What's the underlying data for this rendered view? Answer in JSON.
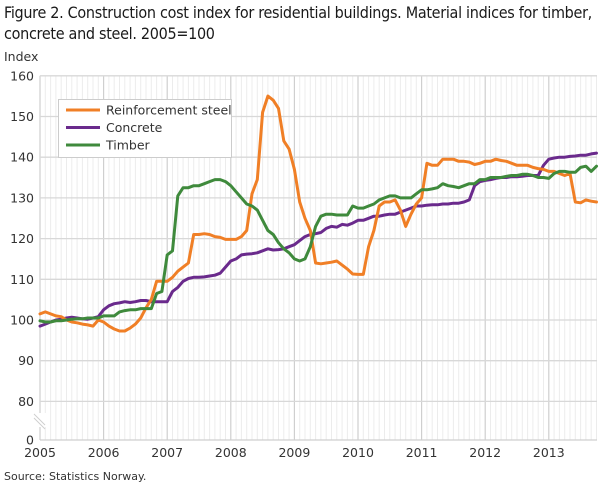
{
  "chart_data": {
    "type": "line",
    "title": "Figure 2. Construction cost index for residential buildings. Material indices for timber, concrete and steel. 2005=100",
    "ylabel": "Index",
    "xlabel": "",
    "source": "Source: Statistics Norway.",
    "yticks": [
      "0",
      "80",
      "90",
      "100",
      "110",
      "120",
      "130",
      "140",
      "150",
      "160"
    ],
    "ylim": [
      80,
      160
    ],
    "y_axis_break": true,
    "xticks": [
      "2005",
      "2006",
      "2007",
      "2008",
      "2009",
      "2010",
      "2011",
      "2012",
      "2013"
    ],
    "x_start": "2005-01",
    "x_end": "2013-10",
    "frequency": "monthly",
    "grid": true,
    "legend_position": "top-left",
    "series": [
      {
        "name": "Reinforcement steel",
        "color": "#f07f26",
        "values": [
          101.5,
          102,
          101.5,
          101,
          100.8,
          100,
          99.5,
          99.3,
          99,
          98.8,
          98.5,
          100,
          99.5,
          98.5,
          97.8,
          97.3,
          97.3,
          98,
          99,
          100.5,
          103,
          105,
          109.5,
          109.5,
          109.5,
          110.5,
          112,
          113,
          114,
          121,
          121,
          121.2,
          121,
          120.5,
          120.3,
          119.8,
          119.8,
          119.8,
          120.5,
          122,
          131,
          134.5,
          151,
          155,
          154,
          152,
          144,
          142,
          137,
          129,
          125,
          122,
          114,
          113.8,
          114,
          114.2,
          114.5,
          113.5,
          112.5,
          111.3,
          111.2,
          111.2,
          118,
          122,
          128,
          129,
          129,
          129.5,
          127,
          123,
          126,
          128.5,
          130,
          138.5,
          138,
          138,
          139.5,
          139.5,
          139.5,
          139,
          139,
          138.8,
          138.2,
          138.5,
          139,
          139,
          139.5,
          139.2,
          139,
          138.5,
          138,
          138,
          138,
          137.5,
          137.2,
          137,
          136.5,
          136.5,
          136,
          135.5,
          136,
          129,
          128.8,
          129.5,
          129.2,
          129
        ]
      },
      {
        "name": "Concrete",
        "color": "#6a2a8c",
        "values": [
          98.5,
          99,
          99.5,
          100,
          100.2,
          100.5,
          100.7,
          100.5,
          100.3,
          100.2,
          100.5,
          100.8,
          102.5,
          103.5,
          104,
          104.2,
          104.5,
          104.3,
          104.5,
          104.8,
          104.8,
          104.5,
          104.5,
          104.5,
          104.5,
          107,
          108,
          109.5,
          110.2,
          110.5,
          110.5,
          110.6,
          110.8,
          111,
          111.5,
          113,
          114.5,
          115,
          116,
          116.2,
          116.3,
          116.5,
          117,
          117.5,
          117.2,
          117.3,
          117.5,
          118,
          118.5,
          119.5,
          120.5,
          121,
          121.2,
          121.5,
          122.5,
          123,
          122.8,
          123.5,
          123.3,
          123.8,
          124.5,
          124.5,
          125,
          125.5,
          125.5,
          125.8,
          126,
          126,
          126.5,
          127,
          127.5,
          128,
          128,
          128.2,
          128.3,
          128.3,
          128.5,
          128.5,
          128.7,
          128.7,
          129,
          129.5,
          133,
          134,
          134.3,
          134.5,
          134.8,
          135,
          135,
          135.2,
          135.2,
          135.3,
          135.5,
          135.5,
          135.5,
          138,
          139.5,
          139.8,
          140,
          140,
          140.2,
          140.3,
          140.5,
          140.5,
          140.8,
          141
        ]
      },
      {
        "name": "Timber",
        "color": "#3f8a3c",
        "values": [
          99.8,
          99.5,
          99.5,
          99.8,
          99.8,
          100,
          100.2,
          100.3,
          100.3,
          100.5,
          100.5,
          100.5,
          101,
          101,
          101,
          102,
          102.3,
          102.5,
          102.5,
          102.8,
          102.8,
          102.8,
          106.5,
          107,
          116,
          117,
          130.5,
          132.5,
          132.5,
          133,
          133,
          133.5,
          134,
          134.5,
          134.5,
          134,
          133,
          131.5,
          130,
          128.5,
          128,
          127,
          124.5,
          122,
          121,
          119,
          117.5,
          116.5,
          115,
          114.5,
          115,
          118,
          123,
          125.5,
          126,
          126,
          125.8,
          125.8,
          125.8,
          128,
          127.5,
          127.5,
          128,
          128.5,
          129.5,
          130,
          130.5,
          130.5,
          130,
          130,
          130,
          131,
          132,
          132,
          132.2,
          132.5,
          133.5,
          133,
          132.8,
          132.5,
          133,
          133.5,
          133.5,
          134.5,
          134.5,
          135,
          135,
          135,
          135.3,
          135.5,
          135.5,
          135.8,
          135.8,
          135.5,
          135,
          135,
          134.8,
          136,
          136.5,
          136.5,
          136.3,
          136.3,
          137.5,
          137.8,
          136.5,
          137.8
        ]
      }
    ]
  }
}
